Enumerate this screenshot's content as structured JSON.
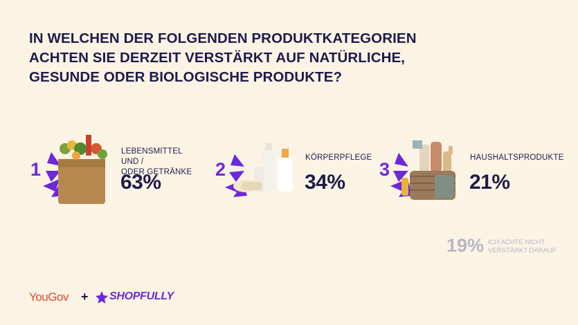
{
  "title_lines": [
    "IN WELCHEN DER FOLGENDEN PRODUKTKATEGORIEN",
    "ACHTEN SIE DERZEIT VERSTÄRKT AUF NATÜRLICHE,",
    "GESUNDE ODER BIOLOGISCHE PRODUKTE?"
  ],
  "chart_data": {
    "type": "table",
    "title": "IN WELCHEN DER FOLGENDEN PRODUKTKATEGORIEN ACHTEN SIE DERZEIT VERSTÄRKT AUF NATÜRLICHE, GESUNDE ODER BIOLOGISCHE PRODUKTE?",
    "unit": "%",
    "items": [
      {
        "rank": "1",
        "label_lines": [
          "LEBENSMITTEL UND /",
          "ODER GETRÄNKE"
        ],
        "value": 63,
        "value_label": "63%",
        "image": "grocery-bag"
      },
      {
        "rank": "2",
        "label_lines": [
          "KÖRPERPFLEGE"
        ],
        "value": 34,
        "value_label": "34%",
        "image": "cosmetic-bottles"
      },
      {
        "rank": "3",
        "label_lines": [
          "HAUSHALTSPRODUKTE"
        ],
        "value": 21,
        "value_label": "21%",
        "image": "cleaning-basket"
      }
    ],
    "other": {
      "value": 19,
      "value_label": "19%",
      "label_lines": [
        "ICH ACHTE NICHT",
        "VERSTÄRKT DARAUF"
      ]
    }
  },
  "logos": {
    "yougov": "YouGov",
    "plus": "+",
    "shopfully": "SHOPFULLY"
  },
  "colors": {
    "background": "#FBF3E4",
    "accent": "#6D28D9",
    "text": "#1E1B4B",
    "muted": "#B9B6C4",
    "yougov": "#E4492C"
  }
}
